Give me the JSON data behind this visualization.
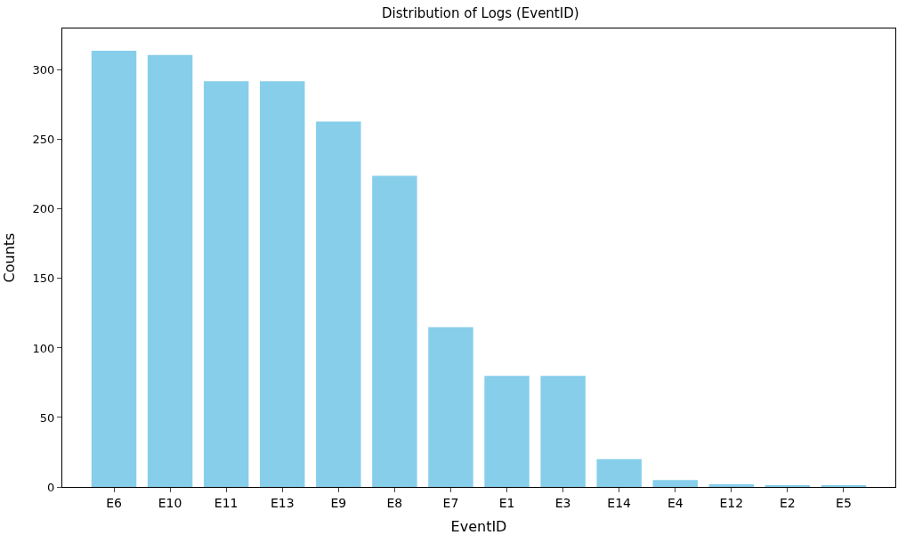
{
  "chart_data": {
    "type": "bar",
    "title": "Distribution of Logs (EventID)",
    "xlabel": "EventID",
    "ylabel": "Counts",
    "categories": [
      "E6",
      "E10",
      "E11",
      "E13",
      "E9",
      "E8",
      "E7",
      "E1",
      "E3",
      "E14",
      "E4",
      "E12",
      "E2",
      "E5"
    ],
    "values": [
      314,
      311,
      292,
      292,
      263,
      224,
      115,
      80,
      80,
      20,
      5,
      2,
      1,
      1
    ],
    "color": "#87ceeb",
    "ylim": [
      0,
      330
    ],
    "yticks": [
      0,
      50,
      100,
      150,
      200,
      250,
      300
    ]
  }
}
